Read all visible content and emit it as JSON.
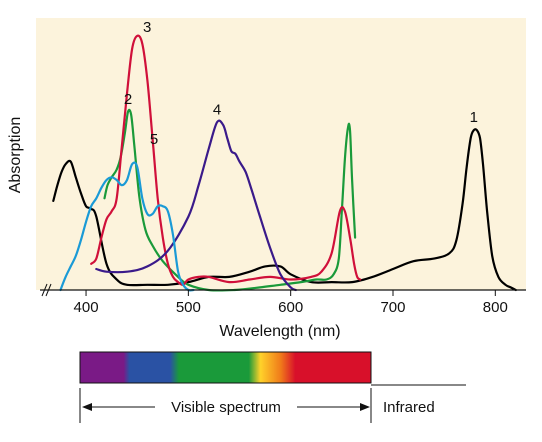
{
  "chart_data": {
    "type": "line",
    "title": "",
    "xlabel": "Wavelength (nm)",
    "ylabel": "Absorption",
    "xlim": [
      355,
      830
    ],
    "ylim": [
      0,
      1
    ],
    "x_ticks": [
      400,
      500,
      600,
      700,
      800
    ],
    "x_tick_labels": [
      "400",
      "500",
      "600",
      "700",
      "800"
    ],
    "grid": false,
    "legend": "none",
    "background": "#fcf3dc",
    "series": [
      {
        "name": "1",
        "color": "#000000",
        "x": [
          368,
          372,
          376,
          380,
          385,
          390,
          395,
          400,
          405,
          410,
          420,
          430,
          440,
          460,
          480,
          500,
          520,
          540,
          560,
          575,
          590,
          600,
          620,
          640,
          660,
          680,
          700,
          720,
          740,
          755,
          762,
          768,
          772,
          776,
          779,
          782,
          785,
          788,
          792,
          797,
          803,
          810,
          815,
          820
        ],
        "y": [
          0.34,
          0.4,
          0.45,
          0.48,
          0.49,
          0.43,
          0.37,
          0.32,
          0.31,
          0.28,
          0.1,
          0.04,
          0.02,
          0.02,
          0.02,
          0.03,
          0.05,
          0.05,
          0.07,
          0.09,
          0.09,
          0.06,
          0.03,
          0.03,
          0.03,
          0.05,
          0.08,
          0.11,
          0.12,
          0.14,
          0.19,
          0.33,
          0.47,
          0.58,
          0.61,
          0.61,
          0.58,
          0.48,
          0.3,
          0.13,
          0.05,
          0.02,
          0.01,
          0.0
        ]
      },
      {
        "name": "2",
        "color": "#1a9a3a",
        "x": [
          418,
          421,
          425,
          430,
          434,
          438,
          441,
          444,
          447,
          452,
          458,
          465,
          475,
          490,
          500,
          520,
          545,
          570,
          590,
          610,
          625,
          635,
          642,
          647,
          650,
          653,
          656,
          658,
          660,
          663
        ],
        "y": [
          0.35,
          0.4,
          0.43,
          0.46,
          0.51,
          0.6,
          0.68,
          0.67,
          0.56,
          0.36,
          0.23,
          0.17,
          0.11,
          0.05,
          0.02,
          0.0,
          0.0,
          0.01,
          0.02,
          0.03,
          0.04,
          0.04,
          0.06,
          0.12,
          0.3,
          0.5,
          0.62,
          0.61,
          0.42,
          0.2
        ]
      },
      {
        "name": "3",
        "color": "#d0103a",
        "x": [
          405,
          410,
          415,
          420,
          425,
          430,
          435,
          440,
          445,
          450,
          455,
          460,
          465,
          470,
          475,
          480,
          485,
          490,
          495,
          500,
          510,
          520,
          540,
          560,
          580,
          600,
          620,
          630,
          640,
          648,
          653,
          658,
          662,
          665,
          668
        ],
        "y": [
          0.1,
          0.12,
          0.2,
          0.27,
          0.3,
          0.35,
          0.55,
          0.75,
          0.92,
          0.97,
          0.94,
          0.8,
          0.58,
          0.35,
          0.2,
          0.1,
          0.05,
          0.03,
          0.02,
          0.04,
          0.05,
          0.05,
          0.03,
          0.04,
          0.05,
          0.04,
          0.05,
          0.07,
          0.14,
          0.3,
          0.3,
          0.2,
          0.1,
          0.05,
          0.04
        ]
      },
      {
        "name": "4",
        "color": "#3a1a8a",
        "x": [
          410,
          420,
          440,
          460,
          480,
          500,
          510,
          520,
          528,
          534,
          538,
          542,
          546,
          550,
          556,
          562,
          570,
          580,
          590,
          600,
          605
        ],
        "y": [
          0.08,
          0.07,
          0.07,
          0.09,
          0.15,
          0.28,
          0.4,
          0.54,
          0.64,
          0.63,
          0.58,
          0.53,
          0.52,
          0.49,
          0.45,
          0.38,
          0.28,
          0.16,
          0.06,
          0.01,
          0.0
        ]
      },
      {
        "name": "5",
        "color": "#1a9ad6",
        "x": [
          375,
          380,
          385,
          390,
          395,
          400,
          405,
          410,
          415,
          420,
          425,
          430,
          435,
          440,
          445,
          450,
          455,
          460,
          465,
          470,
          475,
          480,
          485,
          490,
          495,
          500,
          505
        ],
        "y": [
          0.0,
          0.05,
          0.09,
          0.13,
          0.19,
          0.26,
          0.32,
          0.35,
          0.39,
          0.42,
          0.43,
          0.42,
          0.4,
          0.42,
          0.48,
          0.47,
          0.35,
          0.29,
          0.29,
          0.32,
          0.32,
          0.3,
          0.21,
          0.07,
          0.02,
          0.0,
          0.0
        ]
      }
    ]
  },
  "spectrum": {
    "visible_label": "Visible spectrum",
    "infrared_label": "Infrared",
    "colors": [
      "#7a1a86",
      "#2a52a4",
      "#1a9a3a",
      "#ffd22a",
      "#f07a1a",
      "#d8102a"
    ]
  }
}
